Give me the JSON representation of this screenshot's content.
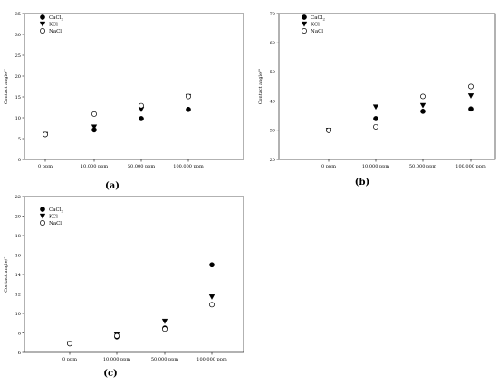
{
  "chart_data": [
    {
      "type": "scatter",
      "panel_label": "(a)",
      "ylabel": "Contact angle/°",
      "ylim": [
        0,
        35
      ],
      "yticks": [
        0,
        5,
        10,
        15,
        20,
        25,
        30,
        35
      ],
      "categories": [
        "0 ppm",
        "10,000 ppm",
        "50,000 ppm",
        "100,000 ppm"
      ],
      "legend_position": "top-left",
      "series": [
        {
          "name": "CaCl2",
          "marker": "filled-circle",
          "values": [
            6.0,
            7.1,
            9.8,
            12.0
          ]
        },
        {
          "name": "KCl",
          "marker": "filled-triangle-down",
          "values": [
            6.0,
            7.8,
            12.0,
            15.1
          ]
        },
        {
          "name": "NaCl",
          "marker": "open-circle",
          "values": [
            6.0,
            10.9,
            12.9,
            15.1
          ]
        }
      ]
    },
    {
      "type": "scatter",
      "panel_label": "(b)",
      "ylabel": "Contact angle/°",
      "ylim": [
        20,
        70
      ],
      "yticks": [
        20,
        30,
        40,
        50,
        60,
        70
      ],
      "categories": [
        "0 ppm",
        "10,000 ppm",
        "50,000 ppm",
        "100,000 ppm"
      ],
      "legend_position": "top-left",
      "series": [
        {
          "name": "CaCl2",
          "marker": "filled-circle",
          "values": [
            30.0,
            34.0,
            36.5,
            37.3
          ]
        },
        {
          "name": "KCl",
          "marker": "filled-triangle-down",
          "values": [
            30.0,
            38.0,
            38.5,
            41.8
          ]
        },
        {
          "name": "NaCl",
          "marker": "open-circle",
          "values": [
            30.0,
            31.2,
            41.6,
            45.0
          ]
        }
      ]
    },
    {
      "type": "scatter",
      "panel_label": "(c)",
      "ylabel": "Contact angle/°",
      "ylim": [
        6,
        22
      ],
      "yticks": [
        6,
        8,
        10,
        12,
        14,
        16,
        18,
        20,
        22
      ],
      "categories": [
        "0 ppm",
        "10,000 ppm",
        "50,000 ppm",
        "100,000 ppm"
      ],
      "legend_position": "top-left",
      "series": [
        {
          "name": "CaCl2",
          "marker": "filled-circle",
          "values": [
            6.9,
            7.6,
            8.5,
            15.0
          ]
        },
        {
          "name": "KCl",
          "marker": "filled-triangle-down",
          "values": [
            6.9,
            7.8,
            9.2,
            11.7
          ]
        },
        {
          "name": "NaCl",
          "marker": "open-circle",
          "values": [
            6.9,
            7.7,
            8.4,
            10.9
          ]
        }
      ]
    }
  ]
}
